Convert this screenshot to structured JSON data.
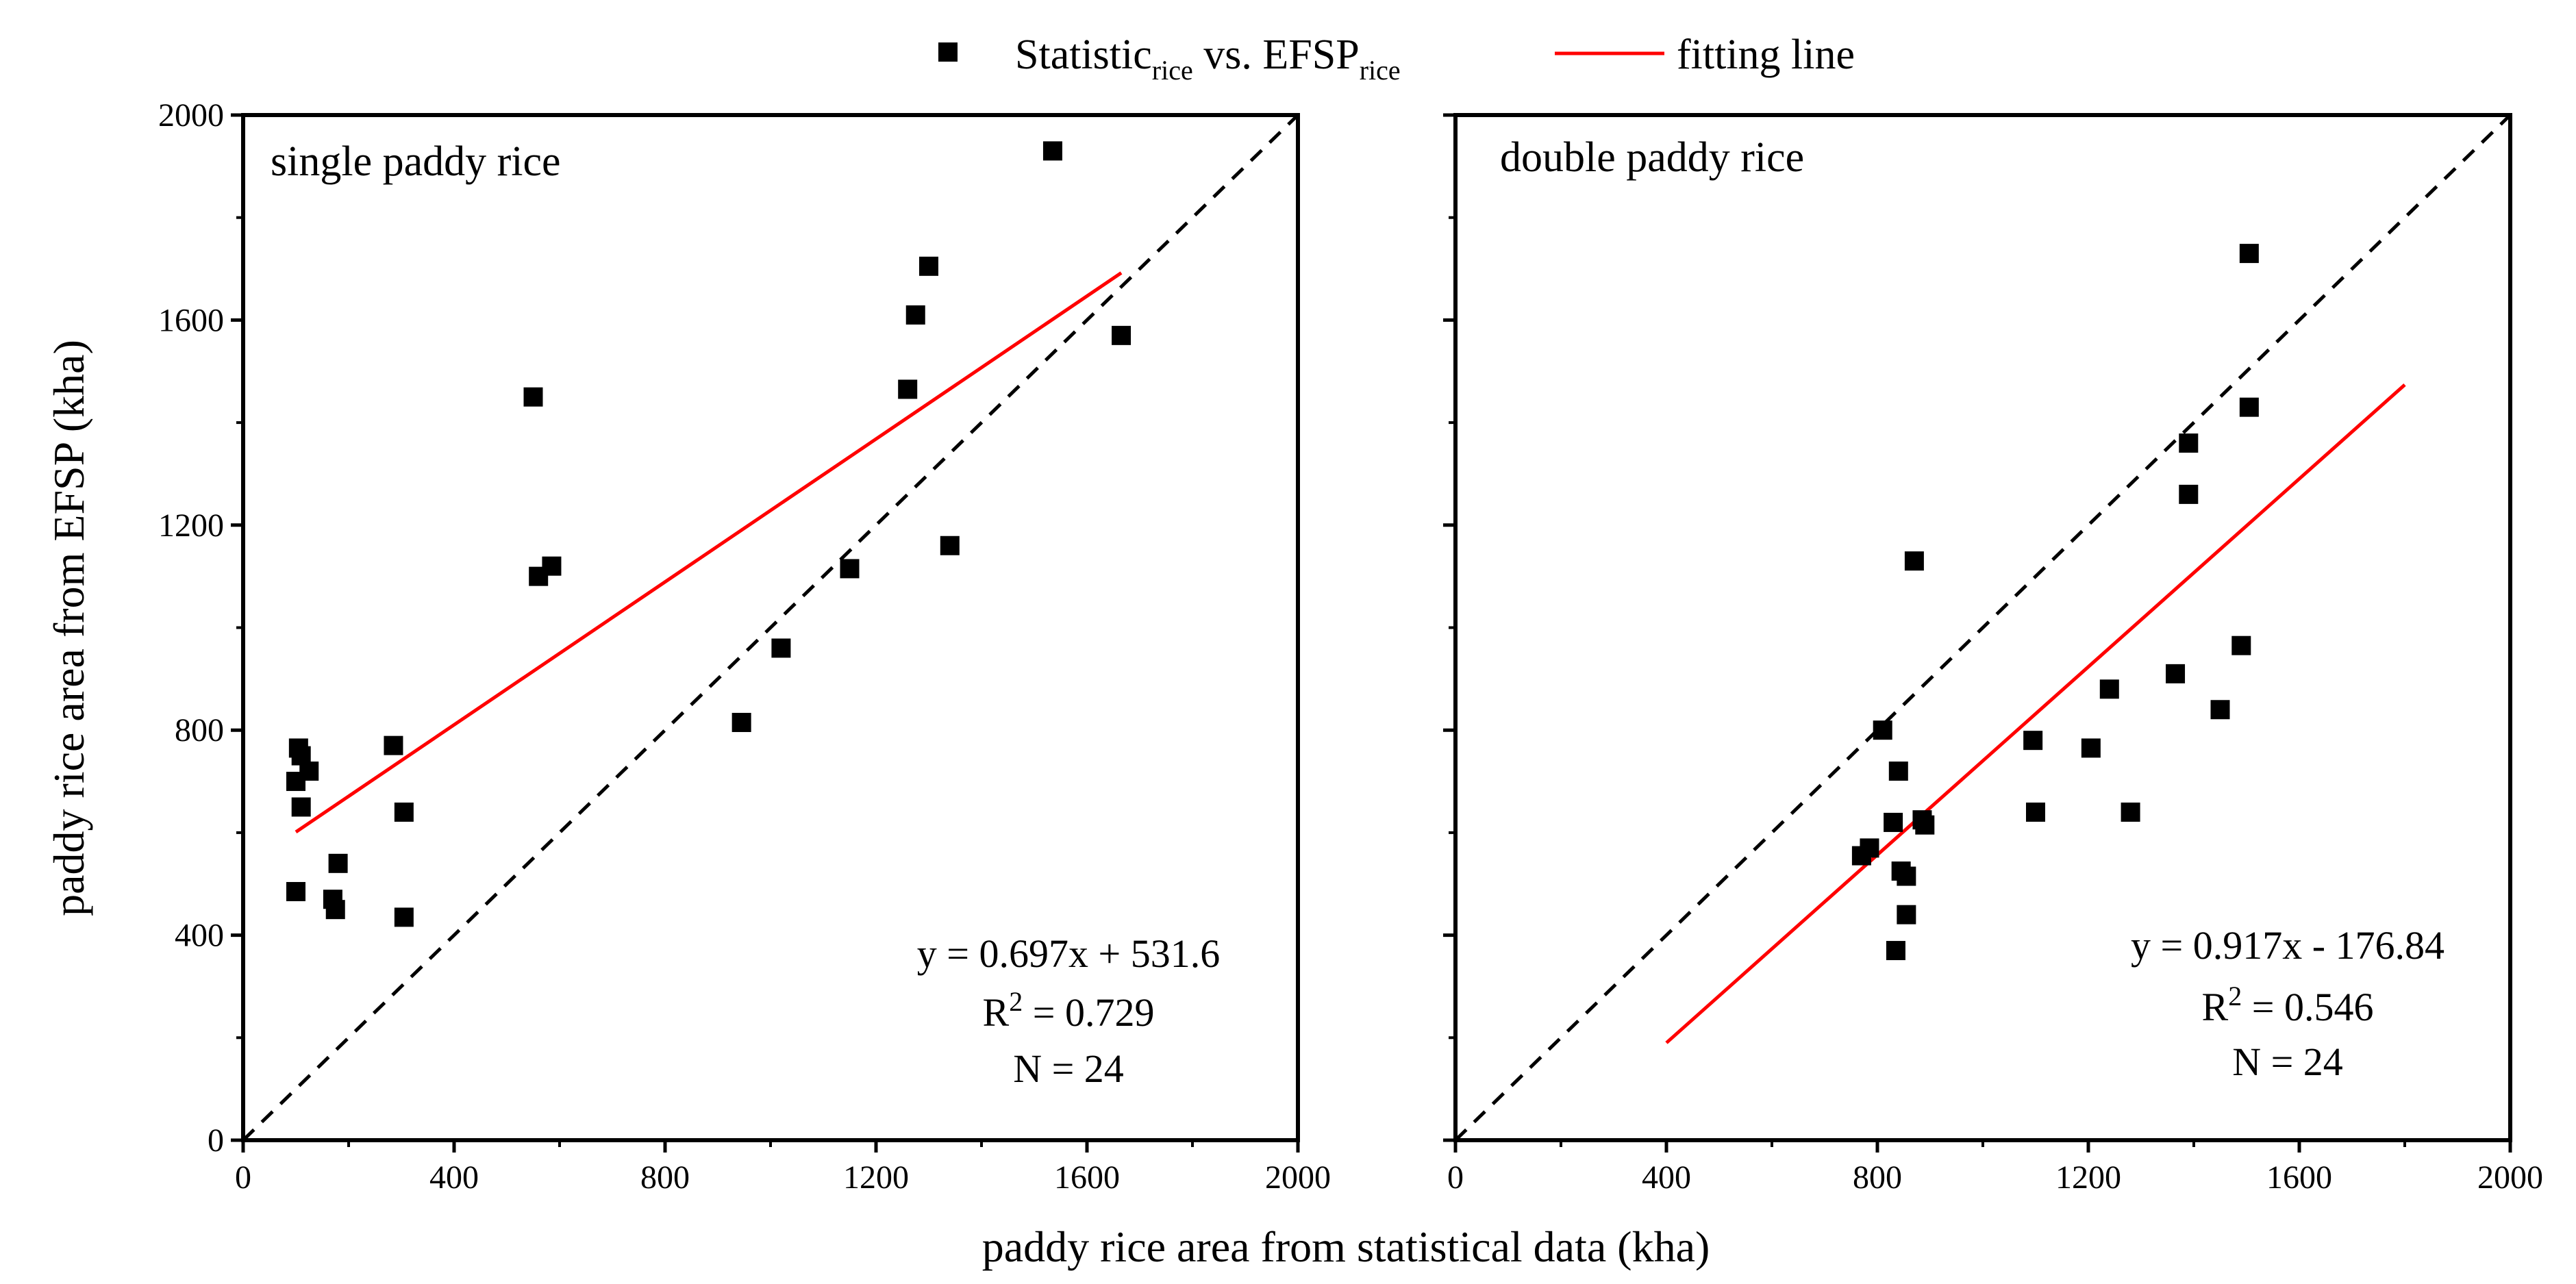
{
  "legend": {
    "points_label": {
      "main": "Statistic",
      "sub1": "rice",
      "mid": " vs. EFSP",
      "sub2": "rice"
    },
    "line_label": "fitting line"
  },
  "xlabel": "paddy rice area from statistical data (kha)",
  "ylabel": "paddy rice area from EFSP (kha)",
  "colors": {
    "points": "#000000",
    "fit_line": "#ff0000",
    "one_to_one": "#000000"
  },
  "chart_data": [
    {
      "type": "scatter",
      "title": "single paddy rice",
      "xlim": [
        0,
        2000
      ],
      "ylim": [
        0,
        2000
      ],
      "xticks": [
        0,
        400,
        800,
        1200,
        1600,
        2000
      ],
      "yticks": [
        0,
        400,
        800,
        1200,
        1600,
        2000
      ],
      "reference_line": "1:1 dashed",
      "fit": {
        "slope": 0.697,
        "intercept": 531.6,
        "x_range": [
          100,
          1665
        ]
      },
      "stats": {
        "equation": "y = 0.697x + 531.6",
        "r2_label": "R",
        "r2_sup": "2",
        "r2_value": " = 0.729",
        "n": "N = 24"
      },
      "points": [
        [
          100,
          485
        ],
        [
          100,
          700
        ],
        [
          105,
          765
        ],
        [
          110,
          650
        ],
        [
          110,
          750
        ],
        [
          125,
          720
        ],
        [
          170,
          470
        ],
        [
          175,
          450
        ],
        [
          180,
          540
        ],
        [
          285,
          770
        ],
        [
          305,
          640
        ],
        [
          305,
          435
        ],
        [
          550,
          1450
        ],
        [
          560,
          1100
        ],
        [
          585,
          1120
        ],
        [
          945,
          815
        ],
        [
          1020,
          960
        ],
        [
          1150,
          1115
        ],
        [
          1260,
          1465
        ],
        [
          1275,
          1610
        ],
        [
          1300,
          1705
        ],
        [
          1340,
          1160
        ],
        [
          1535,
          1930
        ],
        [
          1665,
          1570
        ]
      ]
    },
    {
      "type": "scatter",
      "title": "double paddy rice",
      "xlim": [
        0,
        2000
      ],
      "ylim": [
        0,
        2000
      ],
      "xticks": [
        0,
        400,
        800,
        1200,
        1600,
        2000
      ],
      "yticks": [
        0,
        400,
        800,
        1200,
        1600,
        2000
      ],
      "reference_line": "1:1 dashed",
      "fit": {
        "slope": 0.917,
        "intercept": -176.84,
        "x_range": [
          400,
          1800
        ]
      },
      "stats": {
        "equation": "y = 0.917x - 176.84",
        "r2_label": "R",
        "r2_sup": "2",
        "r2_value": " = 0.546",
        "n": "N = 24"
      },
      "points": [
        [
          770,
          555
        ],
        [
          785,
          570
        ],
        [
          810,
          800
        ],
        [
          830,
          620
        ],
        [
          835,
          370
        ],
        [
          840,
          720
        ],
        [
          845,
          525
        ],
        [
          855,
          515
        ],
        [
          855,
          440
        ],
        [
          870,
          1130
        ],
        [
          885,
          625
        ],
        [
          890,
          615
        ],
        [
          1095,
          780
        ],
        [
          1100,
          640
        ],
        [
          1205,
          765
        ],
        [
          1240,
          880
        ],
        [
          1280,
          640
        ],
        [
          1365,
          910
        ],
        [
          1390,
          1360
        ],
        [
          1390,
          1260
        ],
        [
          1450,
          840
        ],
        [
          1490,
          965
        ],
        [
          1505,
          1430
        ],
        [
          1505,
          1730
        ]
      ]
    }
  ]
}
